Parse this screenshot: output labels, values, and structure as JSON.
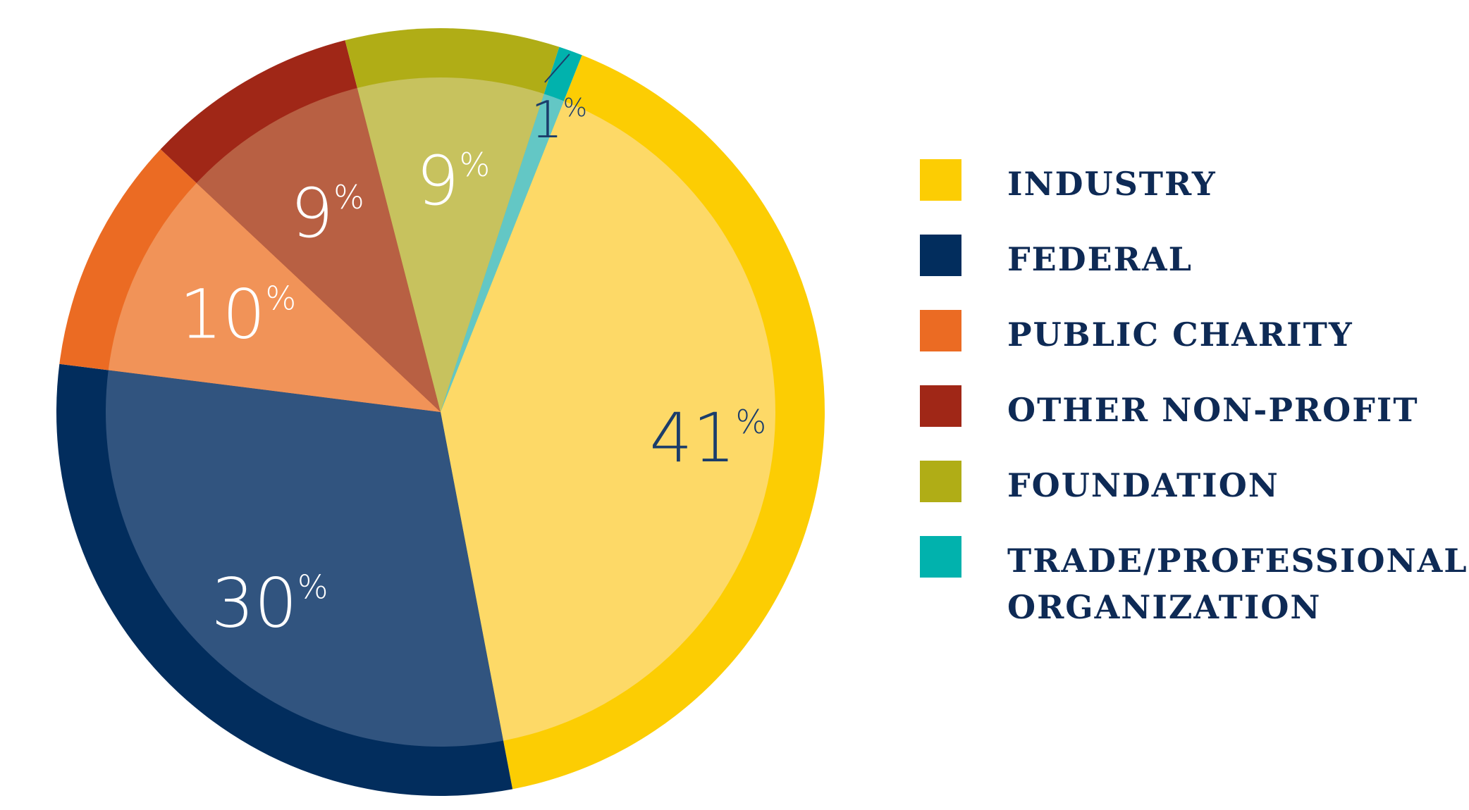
{
  "chart_data": {
    "type": "pie",
    "title": "",
    "legend_position": "right",
    "slices": [
      {
        "name": "INDUSTRY",
        "value": 41,
        "label": "41",
        "outer_color": "#fccd03",
        "inner_color": "#fdd967",
        "text_color": "#1b3d6b"
      },
      {
        "name": "FEDERAL",
        "value": 30,
        "label": "30",
        "outer_color": "#022d5d",
        "inner_color": "#31547f",
        "text_color": "#ffffff"
      },
      {
        "name": "PUBLIC CHARITY",
        "value": 10,
        "label": "10",
        "outer_color": "#eb6b23",
        "inner_color": "#f19358",
        "text_color": "#ffffff"
      },
      {
        "name": "OTHER NON-PROFIT",
        "value": 9,
        "label": "9",
        "outer_color": "#a02717",
        "inner_color": "#b86043",
        "text_color": "#ffffff"
      },
      {
        "name": "FOUNDATION",
        "value": 9,
        "label": "9",
        "outer_color": "#b0ad16",
        "inner_color": "#c7c25e",
        "text_color": "#ffffff"
      },
      {
        "name": "TRADE/PROFESSIONAL\nORGANIZATION",
        "value": 1,
        "label": "1",
        "outer_color": "#01b2ad",
        "inner_color": "#63c7c5",
        "text_color": "#1b3d6b"
      }
    ],
    "percent_symbol": "%"
  }
}
